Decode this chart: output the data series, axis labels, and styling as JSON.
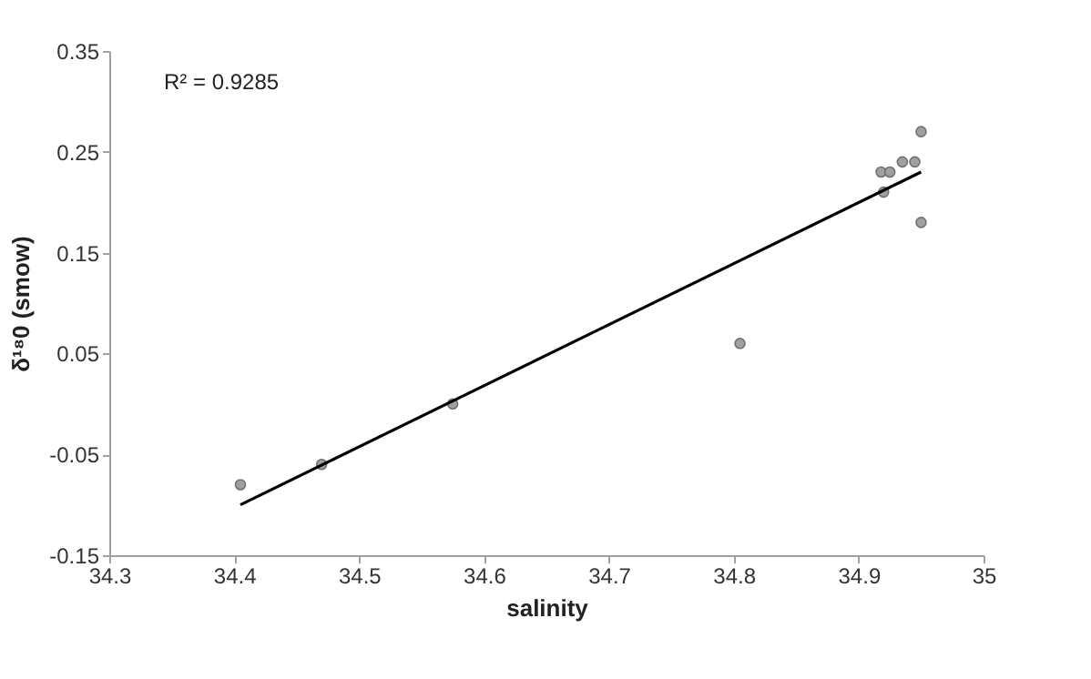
{
  "chart_data": {
    "type": "scatter",
    "xlabel": "salinity",
    "ylabel": "δ¹⁸0 (smow)",
    "annotations": [
      "R² = 0.9285"
    ],
    "xlim": [
      34.3,
      35
    ],
    "xticks": [
      34.3,
      34.4,
      34.5,
      34.6,
      34.7,
      34.8,
      34.9,
      35
    ],
    "ylim": [
      -0.15,
      0.35
    ],
    "yticks": [
      -0.15,
      -0.05,
      0.05,
      0.15,
      0.25,
      0.35
    ],
    "grid": false,
    "series": [
      {
        "color": "#a0a0a0",
        "x": [
          34.405,
          34.47,
          34.575,
          34.805,
          34.918,
          34.925,
          34.92,
          34.935,
          34.945,
          34.95,
          34.95
        ],
        "values": [
          -0.08,
          -0.06,
          0.0,
          0.06,
          0.23,
          0.23,
          0.21,
          0.24,
          0.24,
          0.27,
          0.18
        ]
      },
      {
        "type": "line",
        "color": "#000000",
        "x": [
          34.405,
          34.95
        ],
        "values": [
          -0.1,
          0.23
        ]
      }
    ]
  }
}
